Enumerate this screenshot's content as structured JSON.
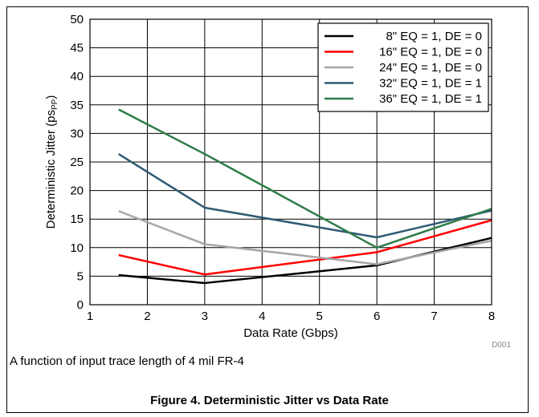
{
  "chart_data": {
    "type": "line",
    "xlabel": "Data Rate (Gbps)",
    "ylabel_main": "Deterministic Jitter (ps",
    "ylabel_sub": "PP",
    "ylabel_close": ")",
    "xlim": [
      1,
      8
    ],
    "ylim": [
      0,
      50
    ],
    "xticks": [
      1,
      2,
      3,
      4,
      5,
      6,
      7,
      8
    ],
    "yticks": [
      0,
      5,
      10,
      15,
      20,
      25,
      30,
      35,
      40,
      45,
      50
    ],
    "grid": true,
    "legend_position": "top-right",
    "series": [
      {
        "name": "8\" EQ = 1, DE = 0",
        "color": "#000000",
        "x": [
          1.5,
          3,
          6,
          8
        ],
        "y": [
          5.2,
          3.8,
          6.9,
          11.7
        ]
      },
      {
        "name": "16\" EQ = 1, DE = 0",
        "color": "#ff0000",
        "x": [
          1.5,
          3,
          6,
          8
        ],
        "y": [
          8.7,
          5.3,
          9.2,
          14.8
        ]
      },
      {
        "name": "24\" EQ = 1, DE = 0",
        "color": "#a6a6a6",
        "x": [
          1.5,
          3,
          6,
          8
        ],
        "y": [
          16.4,
          10.6,
          7.1,
          11.2
        ]
      },
      {
        "name": "32\" EQ = 1, DE = 1",
        "color": "#2e5b74",
        "x": [
          1.5,
          3,
          6,
          8
        ],
        "y": [
          26.4,
          17.0,
          11.8,
          16.5
        ]
      },
      {
        "name": "36\" EQ = 1, DE = 1",
        "color": "#2e7d4a",
        "x": [
          1.5,
          3,
          6,
          8
        ],
        "y": [
          34.2,
          26.4,
          10.0,
          16.8
        ]
      }
    ]
  },
  "source_code": "D001",
  "caption": "A function of input trace length of 4 mil FR-4",
  "figure_title": "Figure 4. Deterministic Jitter vs Data Rate"
}
